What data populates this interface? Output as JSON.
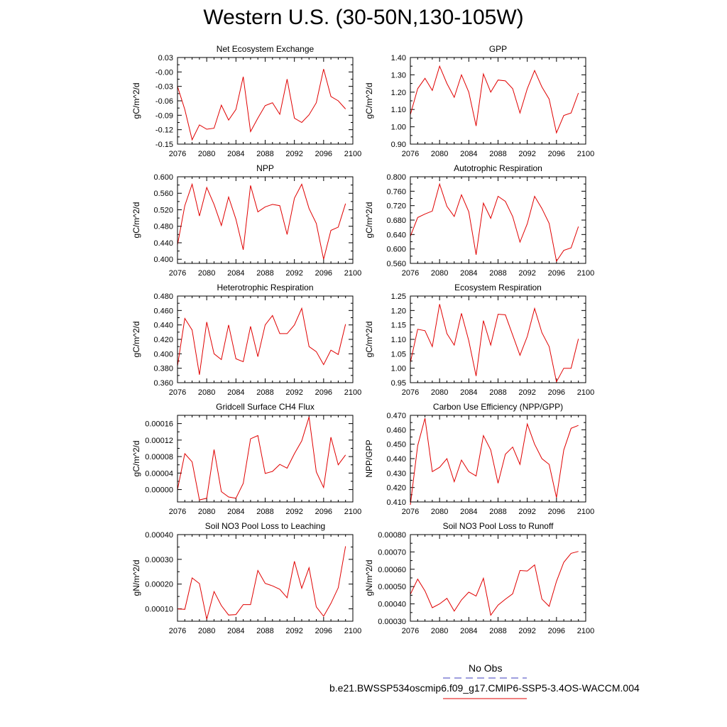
{
  "title": "Western U.S. (30-50N,130-105W)",
  "legend": {
    "items": [
      {
        "label": "No Obs",
        "color": "#6666cc",
        "dash": true
      },
      {
        "label": "b.e21.BWSSP534oscmip6.f09_g17.CMIP6-SSP5-3.4OS-WACCM.004",
        "color": "#e00000",
        "dash": false
      }
    ]
  },
  "chart_data": [
    {
      "type": "line",
      "title": "Net Ecosystem Exchange",
      "ylabel": "gC/m^2/d",
      "xlabel": "",
      "xlim": [
        2076,
        2100
      ],
      "ylim": [
        -0.15,
        0.03
      ],
      "xticks": [
        "2076",
        "2080",
        "2084",
        "2088",
        "2092",
        "2096",
        "2100"
      ],
      "yticks": [
        "-0.15",
        "-0.12",
        "-0.09",
        "-0.06",
        "-0.03",
        "-0.00",
        "0.03"
      ],
      "x": [
        2076,
        2077,
        2078,
        2079,
        2080,
        2081,
        2082,
        2083,
        2084,
        2085,
        2086,
        2087,
        2088,
        2089,
        2090,
        2091,
        2092,
        2093,
        2094,
        2095,
        2096,
        2097,
        2098,
        2099
      ],
      "series": [
        {
          "color": "#e00000",
          "values": [
            -0.03,
            -0.078,
            -0.141,
            -0.11,
            -0.119,
            -0.117,
            -0.069,
            -0.1,
            -0.078,
            -0.01,
            -0.124,
            -0.096,
            -0.07,
            -0.064,
            -0.088,
            -0.015,
            -0.096,
            -0.105,
            -0.089,
            -0.064,
            0.006,
            -0.051,
            -0.06,
            -0.077
          ]
        }
      ]
    },
    {
      "type": "line",
      "title": "GPP",
      "ylabel": "gC/m^2/d",
      "xlabel": "",
      "xlim": [
        2076,
        2100
      ],
      "ylim": [
        0.9,
        1.4
      ],
      "xticks": [
        "2076",
        "2080",
        "2084",
        "2088",
        "2092",
        "2096",
        "2100"
      ],
      "yticks": [
        "0.90",
        "1.00",
        "1.10",
        "1.20",
        "1.30",
        "1.40"
      ],
      "x": [
        2076,
        2077,
        2078,
        2079,
        2080,
        2081,
        2082,
        2083,
        2084,
        2085,
        2086,
        2087,
        2088,
        2089,
        2090,
        2091,
        2092,
        2093,
        2094,
        2095,
        2096,
        2097,
        2098,
        2099
      ],
      "series": [
        {
          "color": "#e00000",
          "values": [
            1.07,
            1.22,
            1.28,
            1.21,
            1.35,
            1.25,
            1.17,
            1.3,
            1.2,
            1.005,
            1.305,
            1.2,
            1.27,
            1.265,
            1.22,
            1.08,
            1.22,
            1.325,
            1.23,
            1.16,
            0.965,
            1.065,
            1.08,
            1.195
          ]
        }
      ]
    },
    {
      "type": "line",
      "title": "NPP",
      "ylabel": "gC/m^2/d",
      "xlabel": "",
      "xlim": [
        2076,
        2100
      ],
      "ylim": [
        0.39,
        0.6
      ],
      "xticks": [
        "2076",
        "2080",
        "2084",
        "2088",
        "2092",
        "2096",
        "2100"
      ],
      "yticks": [
        "0.400",
        "0.440",
        "0.480",
        "0.520",
        "0.560",
        "0.600"
      ],
      "x": [
        2076,
        2077,
        2078,
        2079,
        2080,
        2081,
        2082,
        2083,
        2084,
        2085,
        2086,
        2087,
        2088,
        2089,
        2090,
        2091,
        2092,
        2093,
        2094,
        2095,
        2096,
        2097,
        2098,
        2099
      ],
      "series": [
        {
          "color": "#e00000",
          "values": [
            0.435,
            0.53,
            0.582,
            0.505,
            0.574,
            0.533,
            0.482,
            0.551,
            0.497,
            0.423,
            0.579,
            0.515,
            0.527,
            0.533,
            0.53,
            0.46,
            0.548,
            0.582,
            0.523,
            0.487,
            0.4,
            0.47,
            0.478,
            0.535
          ]
        }
      ]
    },
    {
      "type": "line",
      "title": "Autotrophic Respiration",
      "ylabel": "gC/m^2/d",
      "xlabel": "",
      "xlim": [
        2076,
        2100
      ],
      "ylim": [
        0.56,
        0.8
      ],
      "xticks": [
        "2076",
        "2080",
        "2084",
        "2088",
        "2092",
        "2096",
        "2100"
      ],
      "yticks": [
        "0.560",
        "0.600",
        "0.640",
        "0.680",
        "0.720",
        "0.760",
        "0.800"
      ],
      "x": [
        2076,
        2077,
        2078,
        2079,
        2080,
        2081,
        2082,
        2083,
        2084,
        2085,
        2086,
        2087,
        2088,
        2089,
        2090,
        2091,
        2092,
        2093,
        2094,
        2095,
        2096,
        2097,
        2098,
        2099
      ],
      "series": [
        {
          "color": "#e00000",
          "values": [
            0.635,
            0.687,
            0.697,
            0.705,
            0.78,
            0.718,
            0.69,
            0.75,
            0.703,
            0.584,
            0.727,
            0.685,
            0.746,
            0.732,
            0.69,
            0.619,
            0.67,
            0.746,
            0.712,
            0.671,
            0.566,
            0.596,
            0.603,
            0.662
          ]
        }
      ]
    },
    {
      "type": "line",
      "title": "Heterotrophic Respiration",
      "ylabel": "gC/m^2/d",
      "xlabel": "",
      "xlim": [
        2076,
        2100
      ],
      "ylim": [
        0.36,
        0.48
      ],
      "xticks": [
        "2076",
        "2080",
        "2084",
        "2088",
        "2092",
        "2096",
        "2100"
      ],
      "yticks": [
        "0.360",
        "0.380",
        "0.400",
        "0.420",
        "0.440",
        "0.460",
        "0.480"
      ],
      "x": [
        2076,
        2077,
        2078,
        2079,
        2080,
        2081,
        2082,
        2083,
        2084,
        2085,
        2086,
        2087,
        2088,
        2089,
        2090,
        2091,
        2092,
        2093,
        2094,
        2095,
        2096,
        2097,
        2098,
        2099
      ],
      "series": [
        {
          "color": "#e00000",
          "values": [
            0.383,
            0.449,
            0.433,
            0.371,
            0.444,
            0.4,
            0.392,
            0.44,
            0.393,
            0.389,
            0.438,
            0.396,
            0.44,
            0.453,
            0.428,
            0.428,
            0.44,
            0.463,
            0.41,
            0.403,
            0.385,
            0.405,
            0.399,
            0.441
          ]
        }
      ]
    },
    {
      "type": "line",
      "title": "Ecosystem Respiration",
      "ylabel": "gC/m^2/d",
      "xlabel": "",
      "xlim": [
        2076,
        2100
      ],
      "ylim": [
        0.95,
        1.25
      ],
      "xticks": [
        "2076",
        "2080",
        "2084",
        "2088",
        "2092",
        "2096",
        "2100"
      ],
      "yticks": [
        "0.95",
        "1.00",
        "1.05",
        "1.10",
        "1.15",
        "1.20",
        "1.25"
      ],
      "x": [
        2076,
        2077,
        2078,
        2079,
        2080,
        2081,
        2082,
        2083,
        2084,
        2085,
        2086,
        2087,
        2088,
        2089,
        2090,
        2091,
        2092,
        2093,
        2094,
        2095,
        2096,
        2097,
        2098,
        2099
      ],
      "series": [
        {
          "color": "#e00000",
          "values": [
            1.02,
            1.135,
            1.13,
            1.075,
            1.222,
            1.12,
            1.08,
            1.19,
            1.095,
            0.973,
            1.165,
            1.08,
            1.187,
            1.185,
            1.115,
            1.045,
            1.11,
            1.207,
            1.123,
            1.075,
            0.953,
            1.0,
            1.0,
            1.102
          ]
        }
      ]
    },
    {
      "type": "line",
      "title": "Gridcell Surface CH4 Flux",
      "ylabel": "gC/m^2/d",
      "xlabel": "",
      "xlim": [
        2076,
        2100
      ],
      "ylim": [
        -3e-05,
        0.00018
      ],
      "xticks": [
        "2076",
        "2080",
        "2084",
        "2088",
        "2092",
        "2096",
        "2100"
      ],
      "yticks": [
        "0.00000",
        "0.00004",
        "0.00008",
        "0.00012",
        "0.00016"
      ],
      "ytick_values": [
        0,
        4e-05,
        8e-05,
        0.00012,
        0.00016
      ],
      "x": [
        2076,
        2077,
        2078,
        2079,
        2080,
        2081,
        2082,
        2083,
        2084,
        2085,
        2086,
        2087,
        2088,
        2089,
        2090,
        2091,
        2092,
        2093,
        2094,
        2095,
        2096,
        2097,
        2098,
        2099
      ],
      "series": [
        {
          "color": "#e00000",
          "values": [
            0.0,
            8.7e-05,
            6.7e-05,
            -2.5e-05,
            -2.1e-05,
            9.7e-05,
            -5e-06,
            -1.8e-05,
            -2.1e-05,
            1.5e-05,
            0.000123,
            0.000131,
            3.9e-05,
            4.4e-05,
            6.1e-05,
            5.2e-05,
            8.7e-05,
            0.000118,
            0.000176,
            4.3e-05,
            5e-06,
            0.000127,
            6e-05,
            8.4e-05
          ]
        }
      ]
    },
    {
      "type": "line",
      "title": "Carbon Use Efficiency (NPP/GPP)",
      "ylabel": "NPP/GPP",
      "xlabel": "",
      "xlim": [
        2076,
        2100
      ],
      "ylim": [
        0.41,
        0.47
      ],
      "xticks": [
        "2076",
        "2080",
        "2084",
        "2088",
        "2092",
        "2096",
        "2100"
      ],
      "yticks": [
        "0.410",
        "0.420",
        "0.430",
        "0.440",
        "0.450",
        "0.460",
        "0.470"
      ],
      "x": [
        2076,
        2077,
        2078,
        2079,
        2080,
        2081,
        2082,
        2083,
        2084,
        2085,
        2086,
        2087,
        2088,
        2089,
        2090,
        2091,
        2092,
        2093,
        2094,
        2095,
        2096,
        2097,
        2098,
        2099
      ],
      "series": [
        {
          "color": "#e00000",
          "values": [
            0.408,
            0.449,
            0.468,
            0.431,
            0.434,
            0.44,
            0.424,
            0.439,
            0.431,
            0.428,
            0.456,
            0.446,
            0.423,
            0.443,
            0.448,
            0.436,
            0.464,
            0.45,
            0.44,
            0.436,
            0.413,
            0.446,
            0.461,
            0.463
          ]
        }
      ]
    },
    {
      "type": "line",
      "title": "Soil NO3 Pool Loss to Leaching",
      "ylabel": "gN/m^2/d",
      "xlabel": "",
      "xlim": [
        2076,
        2100
      ],
      "ylim": [
        5e-05,
        0.0004
      ],
      "xticks": [
        "2076",
        "2080",
        "2084",
        "2088",
        "2092",
        "2096",
        "2100"
      ],
      "yticks": [
        "0.00010",
        "0.00020",
        "0.00030",
        "0.00040"
      ],
      "ytick_values": [
        0.0001,
        0.0002,
        0.0003,
        0.0004
      ],
      "x": [
        2076,
        2077,
        2078,
        2079,
        2080,
        2081,
        2082,
        2083,
        2084,
        2085,
        2086,
        2087,
        2088,
        2089,
        2090,
        2091,
        2092,
        2093,
        2094,
        2095,
        2096,
        2097,
        2098,
        2099
      ],
      "series": [
        {
          "color": "#e00000",
          "values": [
            0.0001,
            9.8e-05,
            0.000225,
            0.000202,
            5.8e-05,
            0.00017,
            0.000113,
            7.5e-05,
            7.7e-05,
            0.000117,
            0.000117,
            0.000255,
            0.000203,
            0.000193,
            0.000179,
            0.000145,
            0.000292,
            0.000183,
            0.000266,
            0.000108,
            7e-05,
            0.000122,
            0.000185,
            0.000353
          ]
        }
      ]
    },
    {
      "type": "line",
      "title": "Soil NO3 Pool Loss to Runoff",
      "ylabel": "gN/m^2/d",
      "xlabel": "",
      "xlim": [
        2076,
        2100
      ],
      "ylim": [
        0.0003,
        0.0008
      ],
      "xticks": [
        "2076",
        "2080",
        "2084",
        "2088",
        "2092",
        "2096",
        "2100"
      ],
      "yticks": [
        "0.00030",
        "0.00040",
        "0.00050",
        "0.00060",
        "0.00070",
        "0.00080"
      ],
      "x": [
        2076,
        2077,
        2078,
        2079,
        2080,
        2081,
        2082,
        2083,
        2084,
        2085,
        2086,
        2087,
        2088,
        2089,
        2090,
        2091,
        2092,
        2093,
        2094,
        2095,
        2096,
        2097,
        2098,
        2099
      ],
      "series": [
        {
          "color": "#e00000",
          "values": [
            0.000455,
            0.000543,
            0.000475,
            0.000378,
            0.0004,
            0.000432,
            0.000358,
            0.000423,
            0.000468,
            0.000445,
            0.000548,
            0.000335,
            0.000393,
            0.000427,
            0.000458,
            0.000593,
            0.00059,
            0.000625,
            0.000428,
            0.000386,
            0.00053,
            0.00064,
            0.000692,
            0.000703
          ]
        }
      ]
    }
  ]
}
